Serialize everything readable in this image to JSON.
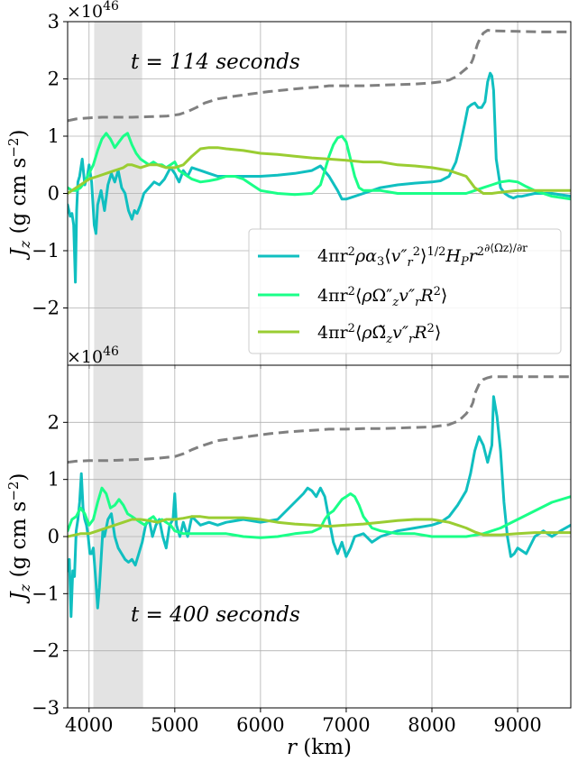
{
  "chart_data": [
    {
      "type": "line",
      "panel": "top",
      "annotation": "t = 114 seconds",
      "offset_label": "×10^46",
      "ylabel": "J_z (g cm s^-2)",
      "xlim": [
        3750,
        9620
      ],
      "ylim": [
        -3,
        3
      ],
      "xticks": [
        4000,
        5000,
        6000,
        7000,
        8000,
        9000
      ],
      "yticks": [
        -2,
        -1,
        0,
        1,
        2,
        3
      ],
      "grid": true,
      "legend": "lower-right",
      "shaded_region": [
        4060,
        4620
      ],
      "series": [
        {
          "name": "4πr²ρα₃⟨v″r²⟩^(1/2) H_P r² ∂⟨Ωz⟩/∂r",
          "color": "#10bfc0",
          "x": [
            3750,
            3780,
            3800,
            3820,
            3840,
            3855,
            3870,
            3890,
            3920,
            3950,
            3980,
            4000,
            4030,
            4060,
            4080,
            4100,
            4140,
            4180,
            4220,
            4260,
            4300,
            4340,
            4380,
            4420,
            4460,
            4500,
            4530,
            4560,
            4600,
            4640,
            4700,
            4760,
            4820,
            4880,
            4950,
            5000,
            5050,
            5100,
            5150,
            5200,
            5300,
            5400,
            5500,
            5600,
            5800,
            6000,
            6200,
            6400,
            6600,
            6700,
            6800,
            6900,
            6950,
            7000,
            7100,
            7200,
            7400,
            7600,
            7800,
            8000,
            8100,
            8200,
            8280,
            8330,
            8380,
            8420,
            8460,
            8500,
            8540,
            8580,
            8620,
            8650,
            8680,
            8700,
            8720,
            8750,
            8800,
            8850,
            8900,
            8950,
            9000,
            9050,
            9200,
            9400,
            9620
          ],
          "y": [
            -0.2,
            -0.4,
            -0.35,
            -0.55,
            -1.55,
            -0.3,
            0.2,
            0.3,
            0.6,
            0.15,
            0.3,
            0.5,
            0.2,
            -0.55,
            -0.7,
            -0.2,
            0.05,
            -0.3,
            0.15,
            0.35,
            0.2,
            0.4,
            0.1,
            0.0,
            -0.3,
            -0.45,
            -0.3,
            -0.35,
            -0.2,
            0.0,
            0.1,
            0.2,
            0.15,
            0.25,
            0.45,
            0.35,
            0.2,
            0.4,
            0.3,
            0.45,
            0.4,
            0.35,
            0.3,
            0.3,
            0.3,
            0.3,
            0.32,
            0.35,
            0.4,
            0.48,
            0.3,
            0.05,
            -0.1,
            -0.1,
            -0.05,
            0.0,
            0.1,
            0.15,
            0.18,
            0.2,
            0.22,
            0.3,
            0.55,
            0.85,
            1.2,
            1.5,
            1.55,
            1.58,
            1.5,
            1.5,
            1.6,
            1.95,
            2.1,
            2.05,
            1.8,
            0.6,
            0.1,
            0.0,
            -0.05,
            -0.08,
            -0.05,
            -0.05,
            0.0,
            0.0,
            -0.05
          ]
        },
        {
          "name": "4πr²⟨ρΩ″z v″r R²⟩",
          "color": "#1aff88",
          "x": [
            3750,
            3800,
            3850,
            3900,
            3950,
            4000,
            4050,
            4100,
            4150,
            4200,
            4250,
            4300,
            4350,
            4400,
            4450,
            4500,
            4550,
            4600,
            4650,
            4700,
            4750,
            4800,
            4850,
            4900,
            4950,
            5000,
            5050,
            5100,
            5150,
            5200,
            5300,
            5400,
            5500,
            5600,
            5700,
            5800,
            5900,
            6000,
            6200,
            6400,
            6600,
            6700,
            6750,
            6800,
            6850,
            6900,
            6950,
            7000,
            7050,
            7100,
            7150,
            7200,
            7300,
            7400,
            7600,
            7800,
            8000,
            8200,
            8400,
            8500,
            8600,
            8700,
            8800,
            8900,
            9000,
            9100,
            9200,
            9400,
            9620
          ],
          "y": [
            0.1,
            0.05,
            0.05,
            0.1,
            0.2,
            0.35,
            0.5,
            0.75,
            0.95,
            1.05,
            0.95,
            0.8,
            0.9,
            1.0,
            1.05,
            0.85,
            0.7,
            0.6,
            0.55,
            0.5,
            0.55,
            0.5,
            0.5,
            0.45,
            0.5,
            0.55,
            0.4,
            0.35,
            0.3,
            0.25,
            0.2,
            0.22,
            0.25,
            0.3,
            0.3,
            0.25,
            0.15,
            0.05,
            0.0,
            -0.02,
            0.0,
            0.15,
            0.4,
            0.65,
            0.85,
            0.97,
            1.0,
            0.9,
            0.6,
            0.3,
            0.1,
            0.05,
            0.05,
            0.05,
            0.0,
            0.0,
            0.0,
            0.0,
            0.0,
            0.05,
            0.1,
            0.15,
            0.2,
            0.22,
            0.2,
            0.12,
            0.05,
            -0.05,
            -0.1
          ]
        },
        {
          "name": "4πr²⟨ρΩ̃z v″r R²⟩",
          "color": "#9acd32",
          "x": [
            3750,
            3800,
            3900,
            4000,
            4100,
            4200,
            4300,
            4400,
            4450,
            4500,
            4600,
            4700,
            4800,
            4900,
            5000,
            5100,
            5200,
            5300,
            5400,
            5500,
            5600,
            5800,
            6000,
            6200,
            6400,
            6600,
            6800,
            7000,
            7200,
            7400,
            7600,
            7800,
            8000,
            8200,
            8400,
            8450,
            8500,
            8550,
            8600,
            8700,
            8800,
            9000,
            9200,
            9400,
            9620
          ],
          "y": [
            0.0,
            0.05,
            0.15,
            0.25,
            0.3,
            0.35,
            0.4,
            0.45,
            0.5,
            0.5,
            0.45,
            0.5,
            0.5,
            0.45,
            0.45,
            0.5,
            0.65,
            0.78,
            0.8,
            0.8,
            0.78,
            0.75,
            0.7,
            0.68,
            0.65,
            0.62,
            0.6,
            0.58,
            0.55,
            0.55,
            0.5,
            0.48,
            0.45,
            0.4,
            0.3,
            0.2,
            0.1,
            0.05,
            0.0,
            0.0,
            0.02,
            0.05,
            0.05,
            0.05,
            0.05
          ]
        },
        {
          "name": "",
          "color": "#808080",
          "dashed": true,
          "x": [
            3750,
            3850,
            4000,
            4150,
            4300,
            4500,
            4700,
            4900,
            5050,
            5150,
            5250,
            5350,
            5500,
            5700,
            5900,
            6100,
            6300,
            6500,
            6700,
            6800,
            7000,
            7200,
            7400,
            7600,
            7800,
            8000,
            8100,
            8200,
            8300,
            8350,
            8400,
            8450,
            8480,
            8500,
            8530,
            8560,
            8600,
            8650,
            8700,
            9000,
            9300,
            9620
          ],
          "y": [
            1.27,
            1.3,
            1.32,
            1.33,
            1.33,
            1.33,
            1.34,
            1.35,
            1.38,
            1.43,
            1.5,
            1.58,
            1.65,
            1.7,
            1.74,
            1.78,
            1.81,
            1.84,
            1.86,
            1.88,
            1.88,
            1.88,
            1.89,
            1.9,
            1.91,
            1.93,
            1.95,
            1.98,
            2.05,
            2.12,
            2.18,
            2.25,
            2.35,
            2.45,
            2.6,
            2.7,
            2.8,
            2.85,
            2.84,
            2.83,
            2.82,
            2.82
          ]
        }
      ]
    },
    {
      "type": "line",
      "panel": "bottom",
      "annotation": "t = 400 seconds",
      "offset_label": "×10^46",
      "xlabel": "r (km)",
      "ylabel": "J_z (g cm s^-2)",
      "xlim": [
        3750,
        9620
      ],
      "ylim": [
        -3,
        3
      ],
      "xticks": [
        4000,
        5000,
        6000,
        7000,
        8000,
        9000
      ],
      "yticks": [
        -3,
        -2,
        -1,
        0,
        1,
        2
      ],
      "grid": true,
      "shaded_region": [
        4050,
        4630
      ],
      "series": [
        {
          "name": "4πr²ρα₃⟨v″r²⟩^(1/2) H_P r² ∂⟨Ωz⟩/∂r",
          "color": "#10bfc0",
          "x": [
            3750,
            3770,
            3790,
            3810,
            3830,
            3850,
            3870,
            3890,
            3910,
            3930,
            3950,
            3970,
            3990,
            4010,
            4030,
            4050,
            4080,
            4100,
            4120,
            4140,
            4160,
            4180,
            4220,
            4260,
            4300,
            4340,
            4380,
            4420,
            4460,
            4500,
            4540,
            4580,
            4620,
            4660,
            4700,
            4740,
            4780,
            4820,
            4860,
            4900,
            4940,
            4980,
            5000,
            5020,
            5060,
            5100,
            5150,
            5200,
            5300,
            5400,
            5500,
            5600,
            5800,
            6000,
            6200,
            6400,
            6500,
            6550,
            6600,
            6650,
            6700,
            6750,
            6800,
            6850,
            6900,
            6950,
            7000,
            7050,
            7100,
            7200,
            7300,
            7400,
            7500,
            7600,
            7800,
            8000,
            8100,
            8200,
            8300,
            8400,
            8450,
            8500,
            8550,
            8600,
            8650,
            8700,
            8720,
            8760,
            8800,
            8840,
            8880,
            8920,
            8960,
            9000,
            9050,
            9100,
            9200,
            9300,
            9400,
            9500,
            9620
          ],
          "y": [
            -0.6,
            -0.4,
            -1.4,
            -0.6,
            -0.7,
            0.1,
            0.3,
            0.6,
            1.1,
            0.5,
            0.3,
            0.2,
            0.0,
            -0.3,
            -0.3,
            -0.2,
            -0.8,
            -1.25,
            -0.9,
            -0.4,
            0.1,
            0.0,
            0.3,
            0.4,
            0.0,
            -0.2,
            -0.3,
            -0.4,
            -0.45,
            -0.4,
            -0.5,
            -0.3,
            -0.1,
            0.2,
            0.3,
            0.0,
            0.2,
            0.3,
            0.0,
            -0.2,
            0.2,
            0.3,
            0.75,
            0.2,
            0.0,
            0.25,
            0.0,
            0.35,
            0.2,
            0.25,
            0.2,
            0.25,
            0.3,
            0.25,
            0.3,
            0.6,
            0.75,
            0.85,
            0.8,
            0.7,
            0.85,
            0.7,
            0.3,
            -0.1,
            -0.3,
            -0.1,
            -0.35,
            -0.2,
            0.0,
            0.05,
            -0.1,
            0.0,
            0.05,
            0.1,
            0.15,
            0.2,
            0.25,
            0.35,
            0.55,
            0.8,
            1.1,
            1.5,
            1.75,
            1.6,
            1.3,
            1.6,
            2.45,
            2.1,
            1.5,
            0.6,
            0.0,
            -0.35,
            -0.3,
            -0.2,
            -0.25,
            -0.3,
            0.0,
            0.1,
            0.0,
            0.1,
            0.2
          ]
        },
        {
          "name": "4πr²⟨ρΩ″z v″r R²⟩",
          "color": "#1aff88",
          "x": [
            3750,
            3800,
            3850,
            3900,
            3950,
            4000,
            4050,
            4100,
            4150,
            4200,
            4250,
            4300,
            4350,
            4400,
            4450,
            4500,
            4550,
            4600,
            4650,
            4700,
            4750,
            4800,
            4850,
            4900,
            4950,
            5000,
            5100,
            5200,
            5300,
            5400,
            5600,
            5800,
            6000,
            6200,
            6400,
            6600,
            6700,
            6750,
            6800,
            6850,
            6900,
            6950,
            7000,
            7050,
            7100,
            7150,
            7200,
            7300,
            7400,
            7600,
            7800,
            8000,
            8200,
            8400,
            8600,
            8800,
            9000,
            9200,
            9400,
            9620
          ],
          "y": [
            0.1,
            0.3,
            0.35,
            0.5,
            0.4,
            0.2,
            0.3,
            0.6,
            0.85,
            0.75,
            0.5,
            0.55,
            0.65,
            0.55,
            0.4,
            0.35,
            0.3,
            0.25,
            0.2,
            0.3,
            0.35,
            0.25,
            0.3,
            0.25,
            0.2,
            0.1,
            0.05,
            0.05,
            0.05,
            0.05,
            0.05,
            0.0,
            -0.02,
            0.0,
            0.05,
            0.08,
            0.15,
            0.3,
            0.4,
            0.45,
            0.55,
            0.65,
            0.7,
            0.75,
            0.7,
            0.55,
            0.35,
            0.15,
            0.1,
            0.05,
            0.05,
            0.0,
            0.0,
            0.0,
            0.05,
            0.15,
            0.3,
            0.45,
            0.6,
            0.7
          ]
        },
        {
          "name": "4πr²⟨ρΩ̃z v″r R²⟩",
          "color": "#9acd32",
          "x": [
            3750,
            3900,
            4000,
            4100,
            4200,
            4300,
            4400,
            4500,
            4600,
            4700,
            4800,
            4900,
            5000,
            5100,
            5200,
            5300,
            5400,
            5600,
            5800,
            6000,
            6200,
            6400,
            6600,
            6800,
            7000,
            7200,
            7400,
            7600,
            7800,
            8000,
            8200,
            8300,
            8400,
            8500,
            8600,
            8800,
            9000,
            9200,
            9400,
            9620
          ],
          "y": [
            0.0,
            0.05,
            0.05,
            0.1,
            0.15,
            0.2,
            0.25,
            0.3,
            0.3,
            0.28,
            0.25,
            0.3,
            0.3,
            0.32,
            0.35,
            0.35,
            0.33,
            0.33,
            0.33,
            0.3,
            0.25,
            0.22,
            0.2,
            0.18,
            0.2,
            0.22,
            0.25,
            0.28,
            0.3,
            0.3,
            0.25,
            0.2,
            0.15,
            0.08,
            0.03,
            0.03,
            0.05,
            0.07,
            0.07,
            0.07
          ]
        },
        {
          "name": "",
          "color": "#808080",
          "dashed": true,
          "x": [
            3750,
            3850,
            4000,
            4200,
            4400,
            4600,
            4800,
            5000,
            5100,
            5200,
            5300,
            5400,
            5500,
            5700,
            5900,
            6100,
            6300,
            6500,
            6700,
            6800,
            7000,
            7200,
            7400,
            7600,
            7800,
            8000,
            8100,
            8200,
            8300,
            8350,
            8400,
            8450,
            8480,
            8500,
            8530,
            8560,
            8600,
            8650,
            8700,
            9000,
            9300,
            9620
          ],
          "y": [
            1.3,
            1.32,
            1.33,
            1.33,
            1.34,
            1.35,
            1.37,
            1.4,
            1.45,
            1.52,
            1.58,
            1.63,
            1.68,
            1.72,
            1.76,
            1.8,
            1.83,
            1.85,
            1.87,
            1.88,
            1.88,
            1.89,
            1.89,
            1.9,
            1.91,
            1.92,
            1.94,
            1.96,
            2.02,
            2.08,
            2.15,
            2.25,
            2.35,
            2.5,
            2.6,
            2.7,
            2.75,
            2.78,
            2.8,
            2.8,
            2.8,
            2.8
          ]
        }
      ]
    }
  ]
}
